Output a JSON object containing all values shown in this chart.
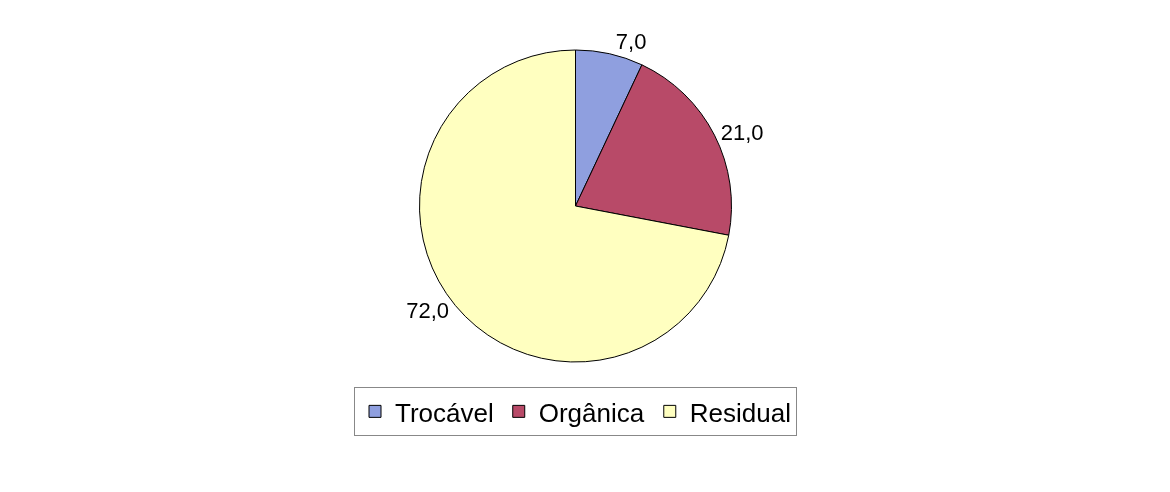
{
  "chart_data": {
    "type": "pie",
    "categories": [
      "Trocável",
      "Orgânica",
      "Residual"
    ],
    "values": [
      7.0,
      21.0,
      72.0
    ],
    "value_labels": [
      "7,0",
      "21,0",
      "72,0"
    ],
    "colors": [
      "#8f9fdf",
      "#b84a68",
      "#ffffc0"
    ],
    "legend": "bottom"
  }
}
